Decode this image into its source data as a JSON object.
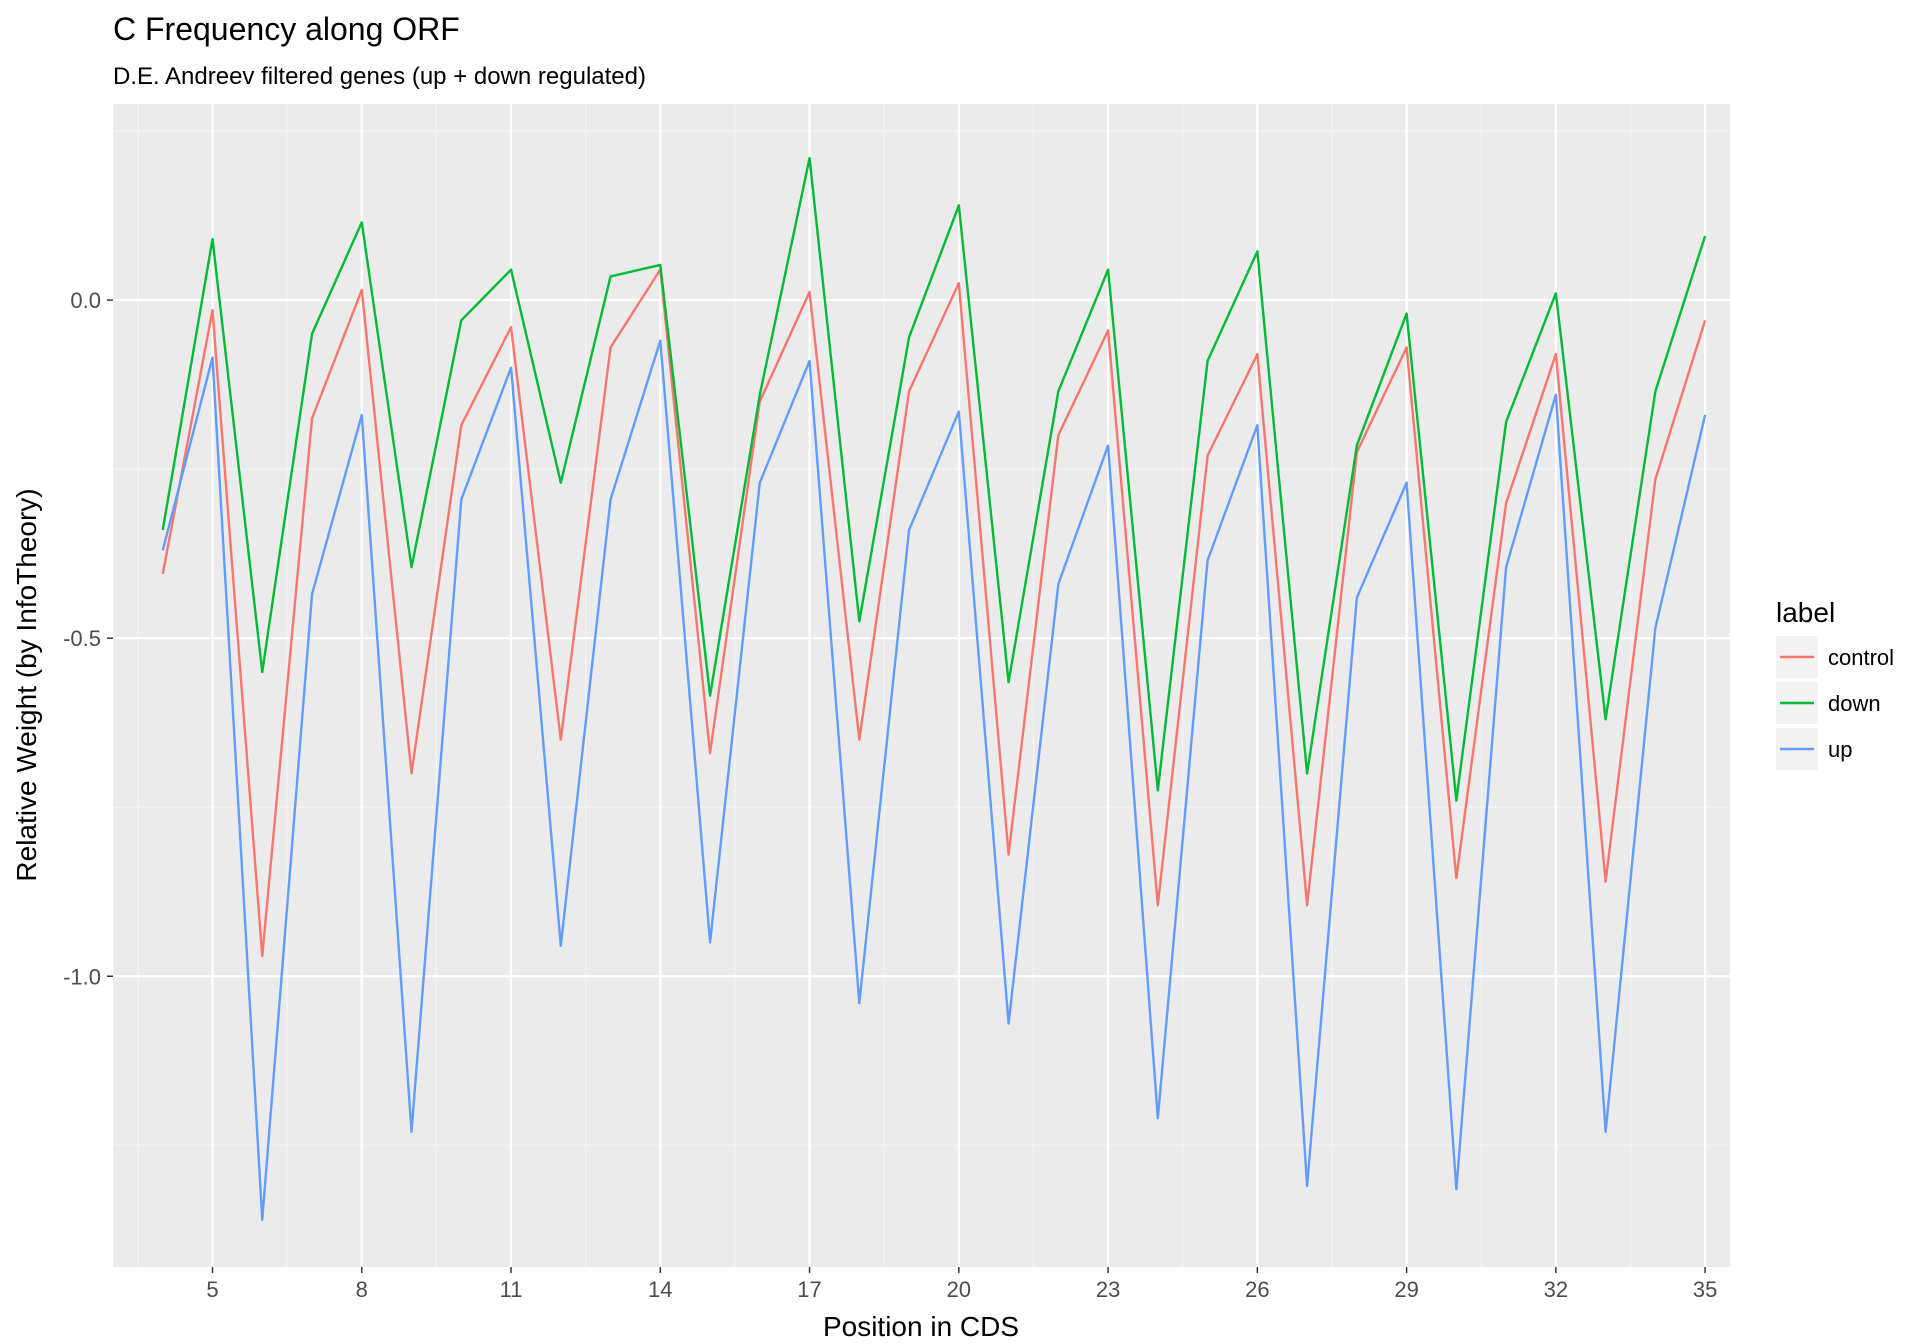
{
  "chart_data": {
    "type": "line",
    "title": "C Frequency along ORF",
    "subtitle": "D.E. Andreev filtered genes (up + down regulated)",
    "xlabel": "Position in CDS",
    "ylabel": "Relative Weight (by InfoTheory)",
    "xlim": [
      3.0,
      35.5
    ],
    "ylim": [
      -1.43,
      0.29
    ],
    "x_ticks": [
      5,
      8,
      11,
      14,
      17,
      20,
      23,
      26,
      29,
      32,
      35
    ],
    "y_ticks": [
      0.0,
      -0.5,
      -1.0
    ],
    "y_tick_labels": [
      "0.0",
      "-0.5",
      "-1.0"
    ],
    "grid": true,
    "legend_title": "label",
    "legend_position": "right",
    "x": [
      4,
      5,
      6,
      7,
      8,
      9,
      10,
      11,
      12,
      13,
      14,
      15,
      16,
      17,
      18,
      19,
      20,
      21,
      22,
      23,
      24,
      25,
      26,
      27,
      28,
      29,
      30,
      31,
      32,
      33,
      34,
      35
    ],
    "series": [
      {
        "name": "control",
        "color": "#F8766D",
        "values": [
          -0.405,
          -0.015,
          -0.97,
          -0.175,
          0.015,
          -0.7,
          -0.185,
          -0.04,
          -0.65,
          -0.07,
          0.045,
          -0.67,
          -0.15,
          0.012,
          -0.65,
          -0.135,
          0.025,
          -0.82,
          -0.2,
          -0.045,
          -0.895,
          -0.23,
          -0.08,
          -0.895,
          -0.225,
          -0.07,
          -0.855,
          -0.3,
          -0.08,
          -0.86,
          -0.265,
          -0.03
        ]
      },
      {
        "name": "down",
        "color": "#00BA38",
        "values": [
          -0.34,
          0.09,
          -0.55,
          -0.05,
          0.115,
          -0.395,
          -0.03,
          0.045,
          -0.27,
          0.035,
          0.052,
          -0.585,
          -0.14,
          0.21,
          -0.475,
          -0.055,
          0.14,
          -0.565,
          -0.135,
          0.045,
          -0.725,
          -0.09,
          0.072,
          -0.7,
          -0.215,
          -0.02,
          -0.74,
          -0.18,
          0.01,
          -0.62,
          -0.135,
          0.095
        ]
      },
      {
        "name": "up",
        "color": "#619CFF",
        "values": [
          -0.37,
          -0.085,
          -1.36,
          -0.435,
          -0.17,
          -1.23,
          -0.295,
          -0.1,
          -0.955,
          -0.295,
          -0.06,
          -0.95,
          -0.27,
          -0.09,
          -1.04,
          -0.34,
          -0.165,
          -1.07,
          -0.42,
          -0.215,
          -1.21,
          -0.385,
          -0.185,
          -1.31,
          -0.44,
          -0.27,
          -1.315,
          -0.395,
          -0.14,
          -1.23,
          -0.485,
          -0.17
        ]
      }
    ]
  }
}
